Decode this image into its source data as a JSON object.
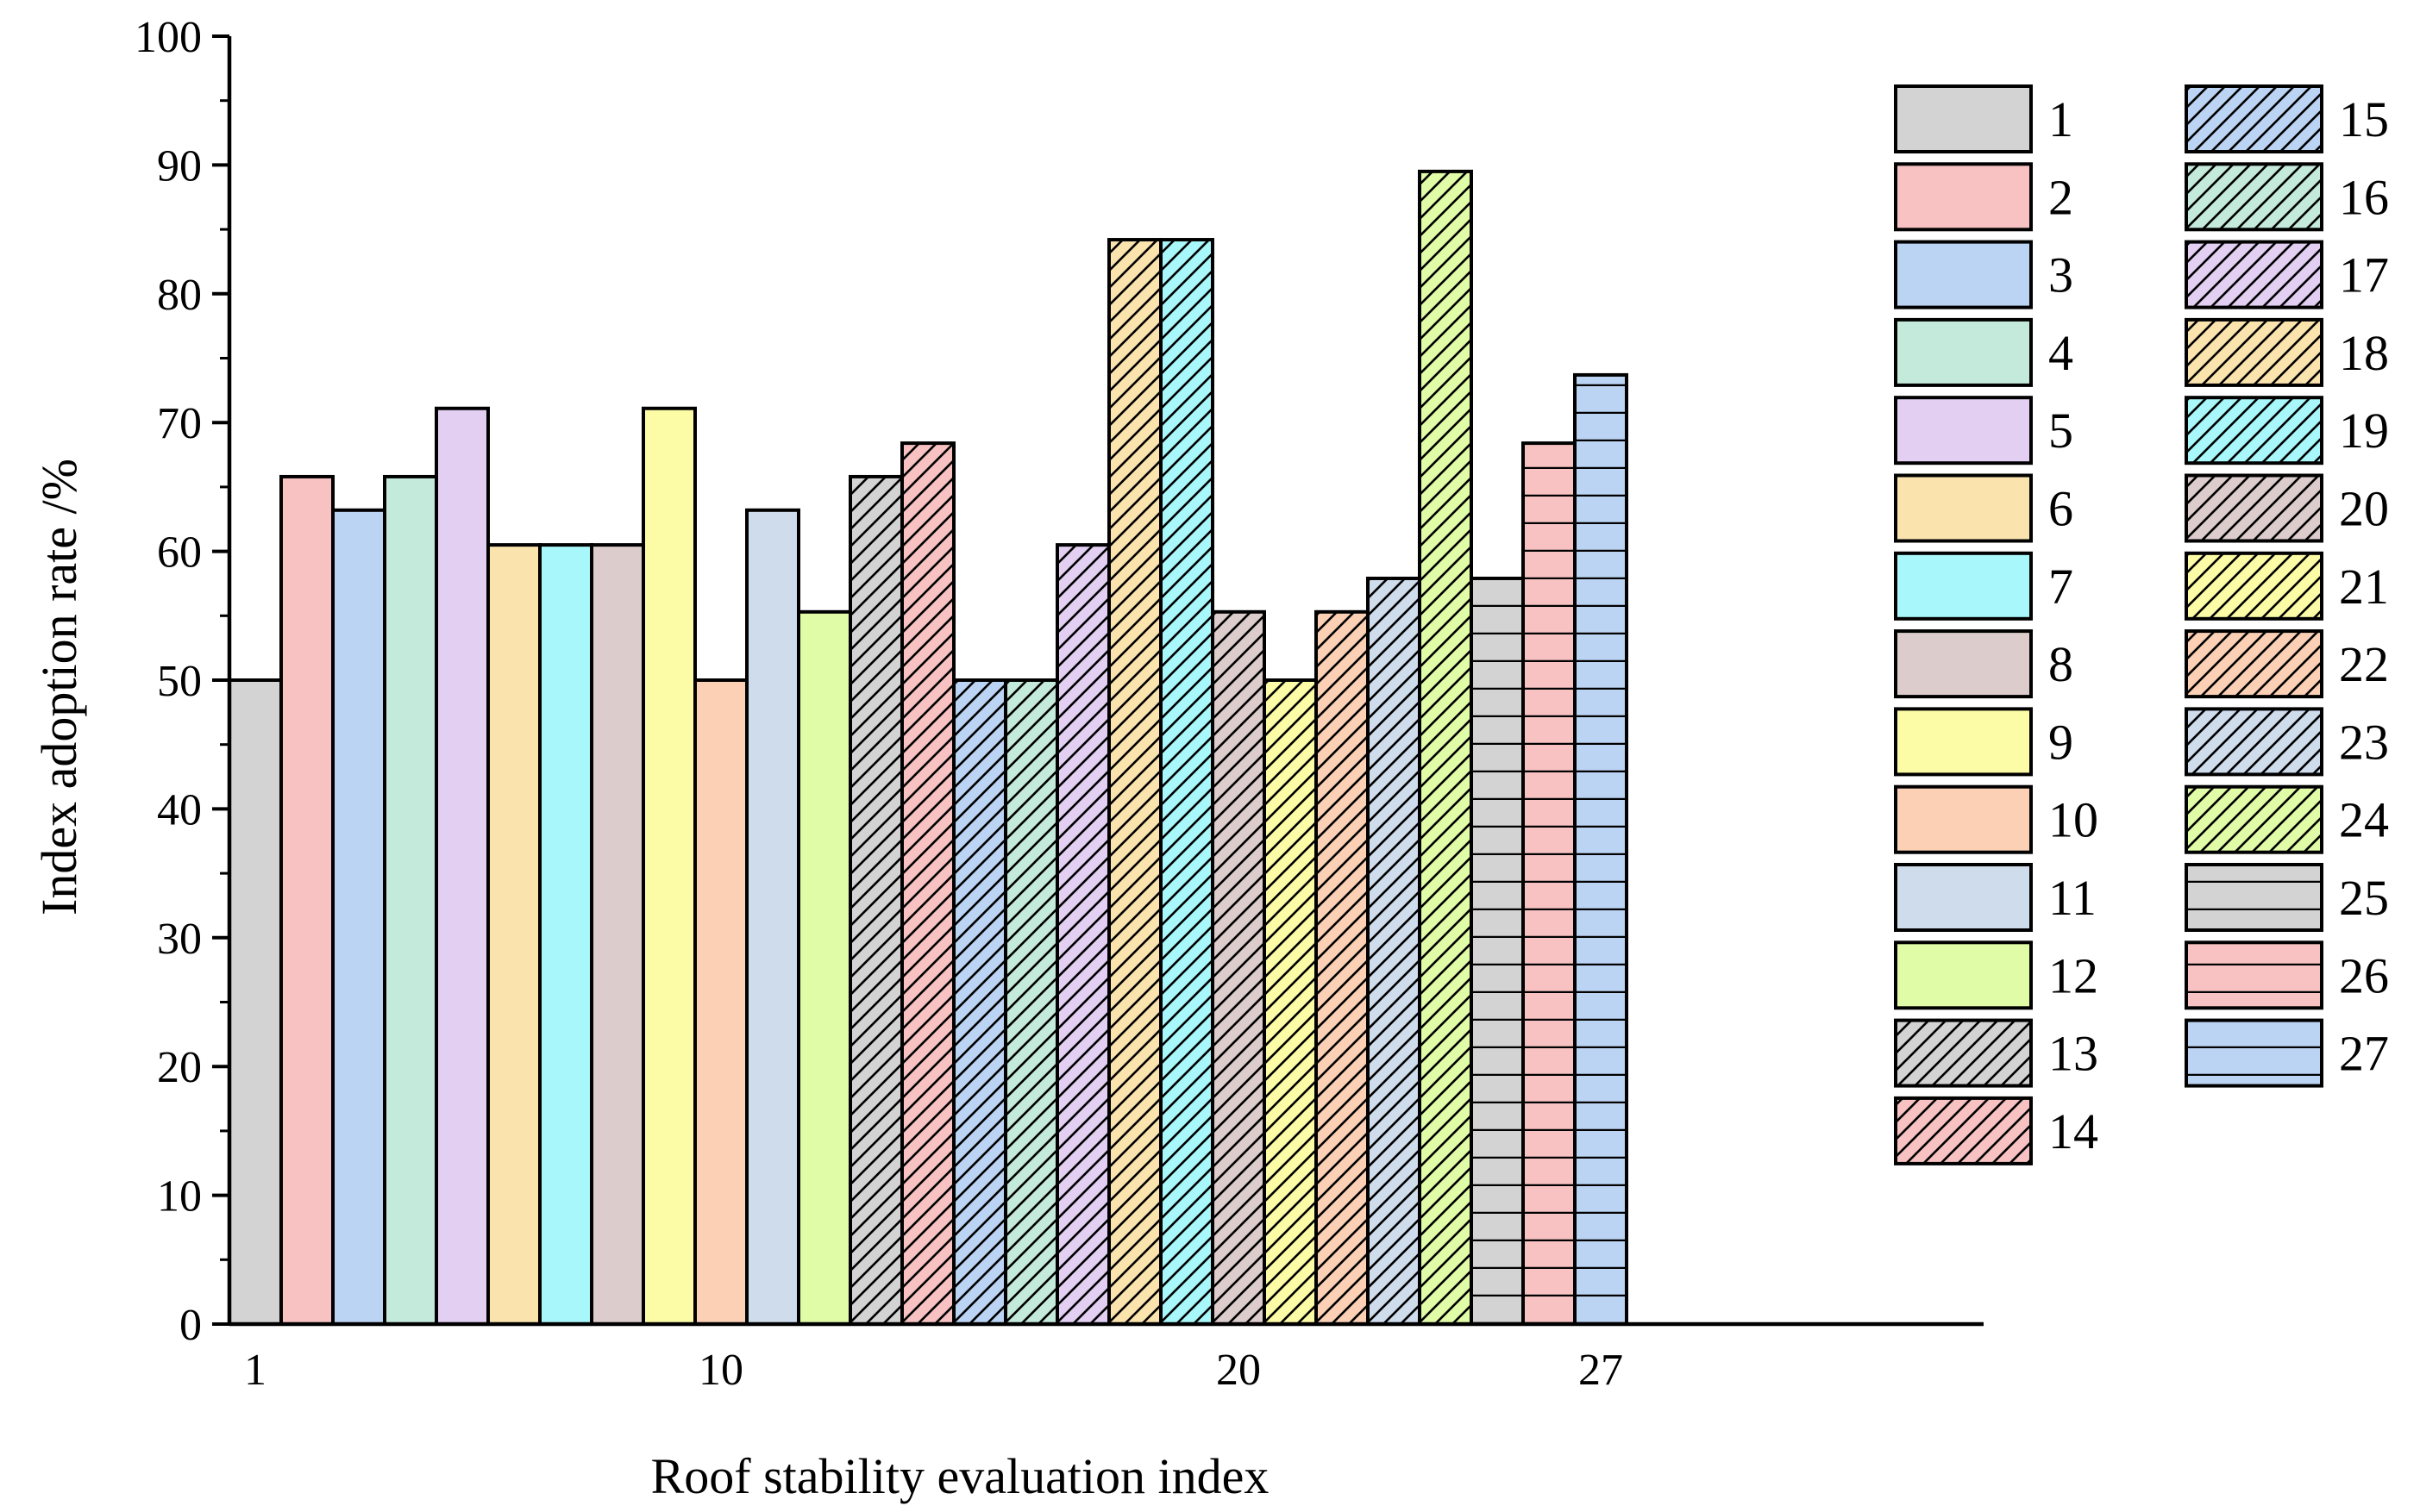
{
  "chart_data": {
    "type": "bar",
    "title": "",
    "xlabel": "Roof stability evaluation index",
    "ylabel": "Index adoption rate /%",
    "ylim": [
      0,
      100
    ],
    "yticks": [
      0,
      10,
      20,
      30,
      40,
      50,
      60,
      70,
      80,
      90,
      100
    ],
    "xtick_labels": [
      {
        "index": 1,
        "label": "1"
      },
      {
        "index": 10,
        "label": "10"
      },
      {
        "index": 20,
        "label": "20"
      },
      {
        "index": 27,
        "label": "27"
      }
    ],
    "x_range_categories": 34,
    "legend_position": "right",
    "grid": false,
    "series": [
      {
        "name": "1",
        "value": 50,
        "color": "#d3d3d3",
        "pattern": "solid"
      },
      {
        "name": "2",
        "value": 65.8,
        "color": "#f8c2c2",
        "pattern": "solid"
      },
      {
        "name": "3",
        "value": 63.2,
        "color": "#bcd4f4",
        "pattern": "solid"
      },
      {
        "name": "4",
        "value": 65.8,
        "color": "#c4eadb",
        "pattern": "solid"
      },
      {
        "name": "5",
        "value": 71.1,
        "color": "#e2cff2",
        "pattern": "solid"
      },
      {
        "name": "6",
        "value": 60.5,
        "color": "#fbe3ad",
        "pattern": "solid"
      },
      {
        "name": "7",
        "value": 60.5,
        "color": "#a8f8fb",
        "pattern": "solid"
      },
      {
        "name": "8",
        "value": 60.5,
        "color": "#dccccc",
        "pattern": "solid"
      },
      {
        "name": "9",
        "value": 71.1,
        "color": "#fdfca6",
        "pattern": "solid"
      },
      {
        "name": "10",
        "value": 50,
        "color": "#fbd0b4",
        "pattern": "solid"
      },
      {
        "name": "11",
        "value": 63.2,
        "color": "#cfdcec",
        "pattern": "solid"
      },
      {
        "name": "12",
        "value": 55.3,
        "color": "#e1fca7",
        "pattern": "solid"
      },
      {
        "name": "13",
        "value": 65.8,
        "color": "#d3d3d3",
        "pattern": "diagonal"
      },
      {
        "name": "14",
        "value": 68.4,
        "color": "#f8c2c2",
        "pattern": "diagonal"
      },
      {
        "name": "15",
        "value": 50,
        "color": "#bcd4f4",
        "pattern": "diagonal"
      },
      {
        "name": "16",
        "value": 50,
        "color": "#c4eadb",
        "pattern": "diagonal"
      },
      {
        "name": "17",
        "value": 60.5,
        "color": "#e2cff2",
        "pattern": "diagonal"
      },
      {
        "name": "18",
        "value": 84.2,
        "color": "#fbe3ad",
        "pattern": "diagonal"
      },
      {
        "name": "19",
        "value": 84.2,
        "color": "#a8f8fb",
        "pattern": "diagonal"
      },
      {
        "name": "20",
        "value": 55.3,
        "color": "#dccccc",
        "pattern": "diagonal"
      },
      {
        "name": "21",
        "value": 50,
        "color": "#fdfca6",
        "pattern": "diagonal"
      },
      {
        "name": "22",
        "value": 55.3,
        "color": "#fbd0b4",
        "pattern": "diagonal"
      },
      {
        "name": "23",
        "value": 57.9,
        "color": "#cfdcec",
        "pattern": "diagonal"
      },
      {
        "name": "24",
        "value": 89.5,
        "color": "#e1fca7",
        "pattern": "diagonal"
      },
      {
        "name": "25",
        "value": 57.9,
        "color": "#d3d3d3",
        "pattern": "horizontal"
      },
      {
        "name": "26",
        "value": 68.4,
        "color": "#f8c2c2",
        "pattern": "horizontal"
      },
      {
        "name": "27",
        "value": 73.7,
        "color": "#bcd4f4",
        "pattern": "horizontal"
      }
    ]
  }
}
